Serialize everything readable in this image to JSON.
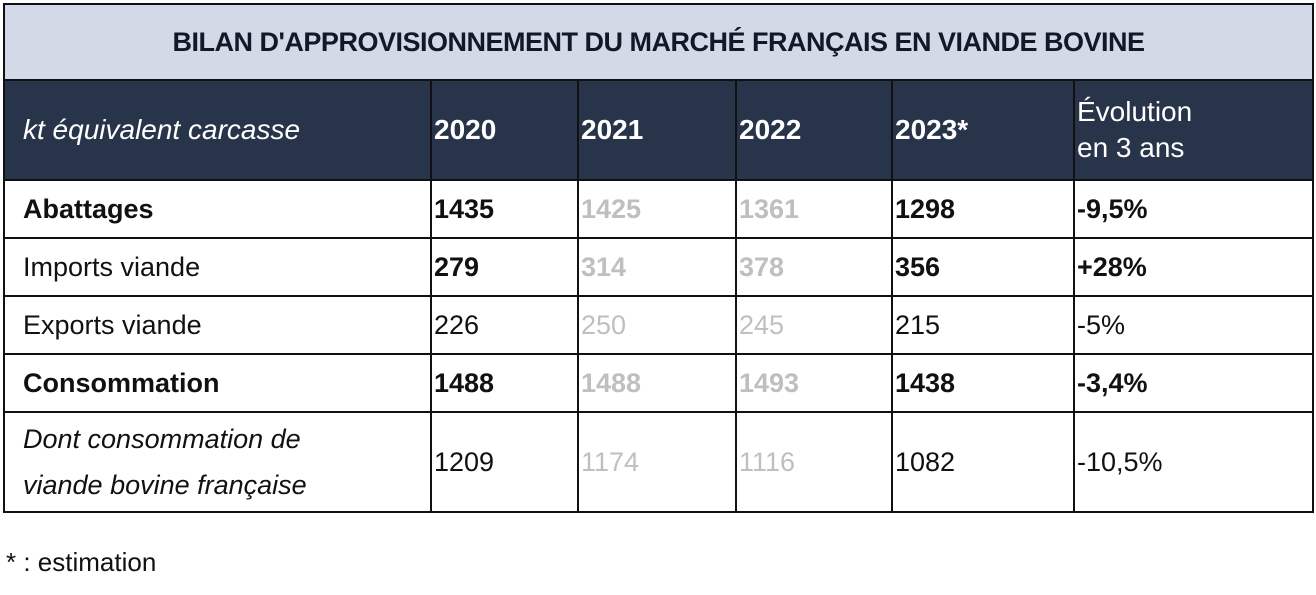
{
  "title": "BILAN D'APPROVISIONNEMENT DU MARCHÉ FRANÇAIS EN VIANDE BOVINE",
  "header": {
    "unit_label": "kt équivalent carcasse",
    "years": [
      "2020",
      "2021",
      "2022",
      "2023*"
    ],
    "evolution_line1": "Évolution",
    "evolution_line2": "en 3 ans"
  },
  "rows": [
    {
      "label": "Abattages",
      "bold": true,
      "values": [
        "1435",
        "1425",
        "1361",
        "1298"
      ],
      "evolution": "-9,5%"
    },
    {
      "label": "Imports viande",
      "bold": false,
      "values": [
        "279",
        "314",
        "378",
        "356"
      ],
      "evolution": "+28%"
    },
    {
      "label": "Exports viande",
      "bold": false,
      "values": [
        "226",
        "250",
        "245",
        "215"
      ],
      "evolution": "-5%"
    },
    {
      "label": "Consommation",
      "bold": true,
      "values": [
        "1488",
        "1488",
        "1493",
        "1438"
      ],
      "evolution": "-3,4%"
    },
    {
      "label_line1": "Dont consommation de",
      "label_line2": "viande bovine française",
      "bold": false,
      "values": [
        "1209",
        "1174",
        "1116",
        "1082"
      ],
      "evolution": "-10,5%"
    }
  ],
  "footnote": "* : estimation",
  "colors": {
    "title_background": "#d3d9e6",
    "header_background": "#283449",
    "header_text": "#ffffff",
    "faded_value": "#bfbfbf",
    "border": "#111111"
  }
}
